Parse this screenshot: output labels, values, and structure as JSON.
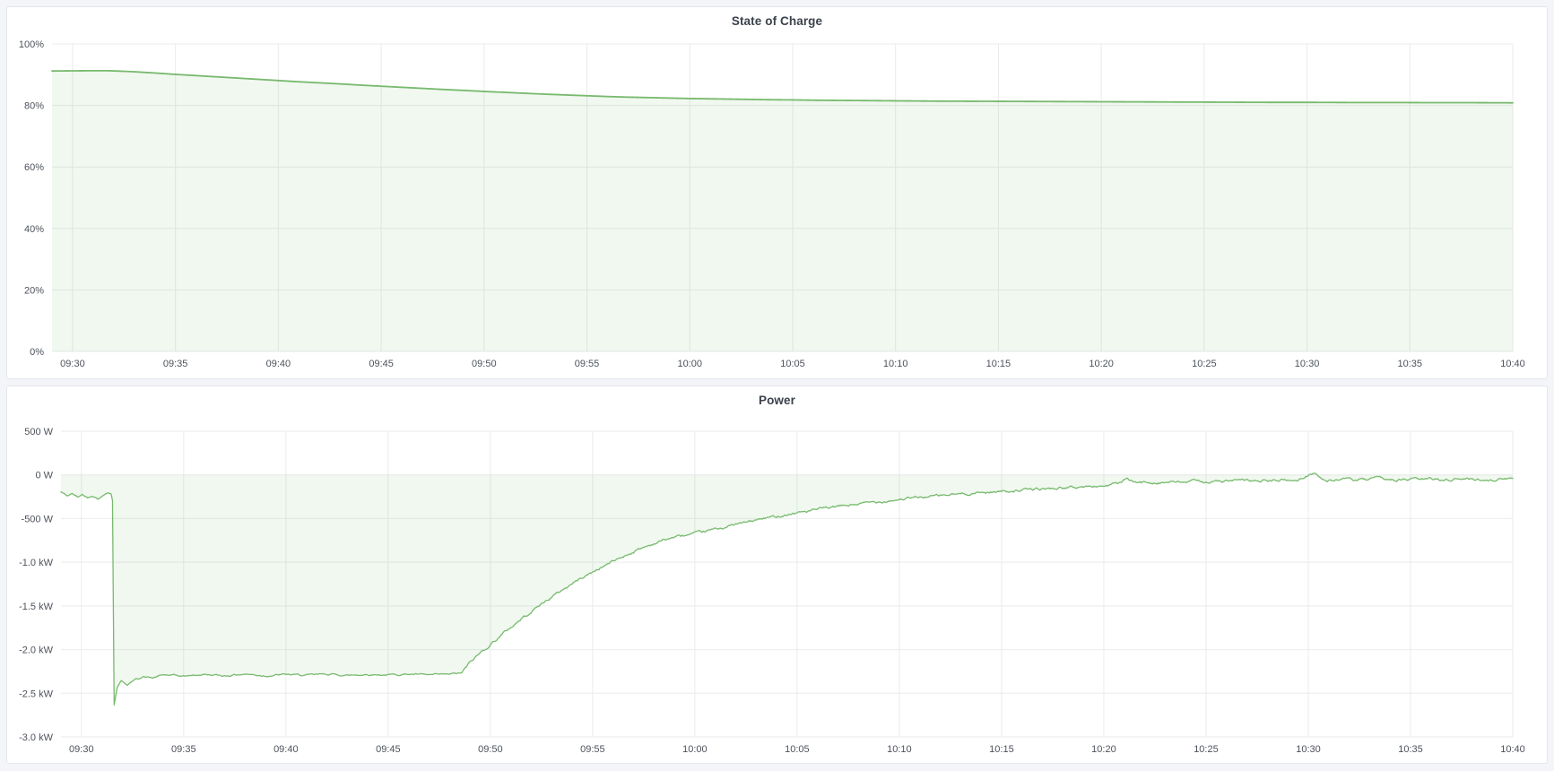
{
  "page": {
    "background": "#f4f5f9",
    "panel_background": "#ffffff",
    "panel_border": "#e4e6eb",
    "grid_color": "#e9ebee",
    "tick_text_color": "#4d525b",
    "title_text_color": "#3c424c"
  },
  "chart_data": [
    {
      "type": "area",
      "title": "State of Charge",
      "xlabel": "",
      "ylabel": "",
      "legend": "none",
      "grid": "on",
      "x_ticks": [
        "09:30",
        "09:35",
        "09:40",
        "09:45",
        "09:50",
        "09:55",
        "10:00",
        "10:05",
        "10:10",
        "10:15",
        "10:20",
        "10:25",
        "10:30",
        "10:35",
        "10:40"
      ],
      "xlim_minutes": [
        -1,
        70
      ],
      "ylim": [
        0,
        100
      ],
      "y_ticks": [
        {
          "label": "100%",
          "value": 100
        },
        {
          "label": "80%",
          "value": 80
        },
        {
          "label": "60%",
          "value": 60
        },
        {
          "label": "40%",
          "value": 40
        },
        {
          "label": "20%",
          "value": 20
        },
        {
          "label": "0%",
          "value": 0
        }
      ],
      "baseline": 0,
      "noise_seed": 11,
      "noise_segments": [],
      "series": [
        {
          "name": "State of Charge",
          "unit": "%",
          "color": "#77b96d",
          "fill": "rgba(115,191,105,0.11)",
          "line_width": 1.8,
          "points": [
            [
              -1,
              91.2
            ],
            [
              0,
              91.25
            ],
            [
              1,
              91.3
            ],
            [
              1.7,
              91.3
            ],
            [
              2.5,
              91.1
            ],
            [
              3,
              90.95
            ],
            [
              4,
              90.55
            ],
            [
              5,
              90.1
            ],
            [
              6,
              89.7
            ],
            [
              7,
              89.3
            ],
            [
              8,
              88.9
            ],
            [
              9,
              88.5
            ],
            [
              10,
              88.1
            ],
            [
              11,
              87.7
            ],
            [
              12,
              87.35
            ],
            [
              13,
              87.0
            ],
            [
              14,
              86.6
            ],
            [
              15,
              86.25
            ],
            [
              16,
              85.9
            ],
            [
              17,
              85.55
            ],
            [
              18,
              85.2
            ],
            [
              19,
              84.9
            ],
            [
              20,
              84.55
            ],
            [
              21,
              84.25
            ],
            [
              22,
              83.95
            ],
            [
              23,
              83.65
            ],
            [
              24,
              83.4
            ],
            [
              25,
              83.15
            ],
            [
              26,
              82.9
            ],
            [
              27,
              82.7
            ],
            [
              28,
              82.55
            ],
            [
              29,
              82.4
            ],
            [
              30,
              82.25
            ],
            [
              31,
              82.15
            ],
            [
              32,
              82.05
            ],
            [
              33,
              81.95
            ],
            [
              34,
              81.85
            ],
            [
              35,
              81.8
            ],
            [
              36,
              81.7
            ],
            [
              37,
              81.65
            ],
            [
              38,
              81.6
            ],
            [
              39,
              81.55
            ],
            [
              40,
              81.5
            ],
            [
              42,
              81.4
            ],
            [
              44,
              81.35
            ],
            [
              46,
              81.3
            ],
            [
              48,
              81.25
            ],
            [
              50,
              81.2
            ],
            [
              52,
              81.15
            ],
            [
              54,
              81.1
            ],
            [
              56,
              81.05
            ],
            [
              58,
              81.0
            ],
            [
              60,
              81.0
            ],
            [
              62,
              80.95
            ],
            [
              64,
              80.95
            ],
            [
              66,
              80.9
            ],
            [
              68,
              80.9
            ],
            [
              70,
              80.85
            ]
          ]
        }
      ]
    },
    {
      "type": "area",
      "title": "Power",
      "xlabel": "",
      "ylabel": "",
      "legend": "none",
      "grid": "on",
      "x_ticks": [
        "09:30",
        "09:35",
        "09:40",
        "09:45",
        "09:50",
        "09:55",
        "10:00",
        "10:05",
        "10:10",
        "10:15",
        "10:20",
        "10:25",
        "10:30",
        "10:35",
        "10:40"
      ],
      "xlim_minutes": [
        -1,
        70
      ],
      "ylim": [
        -3000,
        500
      ],
      "y_ticks": [
        {
          "label": "500 W",
          "value": 500
        },
        {
          "label": "0 W",
          "value": 0
        },
        {
          "label": "-500 W",
          "value": -500
        },
        {
          "label": "-1.0 kW",
          "value": -1000
        },
        {
          "label": "-1.5 kW",
          "value": -1500
        },
        {
          "label": "-2.0 kW",
          "value": -2000
        },
        {
          "label": "-2.5 kW",
          "value": -2500
        },
        {
          "label": "-3.0 kW",
          "value": -3000
        }
      ],
      "baseline": 0,
      "noise_seed": 42,
      "noise_segments": [
        {
          "from": -1,
          "to": 1.52,
          "amp": 14
        },
        {
          "from": 1.52,
          "to": 2.6,
          "amp": 8
        },
        {
          "from": 2.6,
          "to": 18.6,
          "amp": 16
        },
        {
          "from": 18.6,
          "to": 30,
          "amp": 26
        },
        {
          "from": 30,
          "to": 50,
          "amp": 24
        },
        {
          "from": 50,
          "to": 70,
          "amp": 26
        }
      ],
      "series": [
        {
          "name": "Power",
          "unit": "W",
          "color": "#77b96d",
          "fill": "rgba(115,191,105,0.11)",
          "line_width": 1.3,
          "points": [
            [
              -1,
              -195
            ],
            [
              -0.7,
              -240
            ],
            [
              -0.45,
              -215
            ],
            [
              -0.2,
              -255
            ],
            [
              0.05,
              -225
            ],
            [
              0.3,
              -260
            ],
            [
              0.55,
              -235
            ],
            [
              0.8,
              -270
            ],
            [
              1.05,
              -240
            ],
            [
              1.3,
              -195
            ],
            [
              1.45,
              -215
            ],
            [
              1.52,
              -285
            ],
            [
              1.6,
              -2630
            ],
            [
              1.75,
              -2430
            ],
            [
              1.95,
              -2355
            ],
            [
              2.25,
              -2405
            ],
            [
              2.6,
              -2345
            ],
            [
              3,
              -2310
            ],
            [
              3.5,
              -2325
            ],
            [
              4,
              -2290
            ],
            [
              5,
              -2305
            ],
            [
              6,
              -2285
            ],
            [
              7,
              -2300
            ],
            [
              8,
              -2280
            ],
            [
              9,
              -2300
            ],
            [
              10,
              -2285
            ],
            [
              11,
              -2295
            ],
            [
              12,
              -2280
            ],
            [
              13,
              -2295
            ],
            [
              14,
              -2285
            ],
            [
              15,
              -2290
            ],
            [
              16,
              -2280
            ],
            [
              17,
              -2292
            ],
            [
              18,
              -2283
            ],
            [
              18.6,
              -2268
            ],
            [
              19,
              -2150
            ],
            [
              19.5,
              -2040
            ],
            [
              20,
              -1940
            ],
            [
              20.5,
              -1840
            ],
            [
              21,
              -1745
            ],
            [
              21.5,
              -1652
            ],
            [
              22,
              -1562
            ],
            [
              22.5,
              -1478
            ],
            [
              23,
              -1398
            ],
            [
              23.5,
              -1320
            ],
            [
              24,
              -1245
            ],
            [
              24.5,
              -1175
            ],
            [
              25,
              -1112
            ],
            [
              25.5,
              -1048
            ],
            [
              26,
              -988
            ],
            [
              26.5,
              -932
            ],
            [
              27,
              -880
            ],
            [
              27.5,
              -830
            ],
            [
              28,
              -785
            ],
            [
              28.5,
              -745
            ],
            [
              29,
              -712
            ],
            [
              29.5,
              -694
            ],
            [
              30,
              -678
            ],
            [
              31,
              -622
            ],
            [
              32,
              -568
            ],
            [
              33,
              -518
            ],
            [
              34,
              -473
            ],
            [
              35,
              -433
            ],
            [
              36,
              -397
            ],
            [
              37,
              -363
            ],
            [
              38,
              -333
            ],
            [
              39,
              -305
            ],
            [
              40,
              -280
            ],
            [
              41,
              -257
            ],
            [
              42,
              -237
            ],
            [
              43,
              -219
            ],
            [
              44,
              -203
            ],
            [
              45,
              -188
            ],
            [
              46,
              -174
            ],
            [
              47,
              -161
            ],
            [
              48,
              -149
            ],
            [
              49,
              -138
            ],
            [
              50,
              -126
            ],
            [
              50.7,
              -98
            ],
            [
              51.1,
              -55
            ],
            [
              51.6,
              -92
            ],
            [
              52.5,
              -82
            ],
            [
              53.5,
              -88
            ],
            [
              54.5,
              -72
            ],
            [
              55.5,
              -78
            ],
            [
              56.5,
              -66
            ],
            [
              57.5,
              -72
            ],
            [
              58.5,
              -60
            ],
            [
              59.5,
              -66
            ],
            [
              60.3,
              35
            ],
            [
              60.8,
              -75
            ],
            [
              61.5,
              -48
            ],
            [
              62.5,
              -62
            ],
            [
              63.5,
              -42
            ],
            [
              64.5,
              -58
            ],
            [
              65.5,
              -45
            ],
            [
              66.5,
              -55
            ],
            [
              67.5,
              -42
            ],
            [
              68.5,
              -56
            ],
            [
              69.5,
              -50
            ],
            [
              70,
              -42
            ]
          ]
        }
      ]
    }
  ]
}
